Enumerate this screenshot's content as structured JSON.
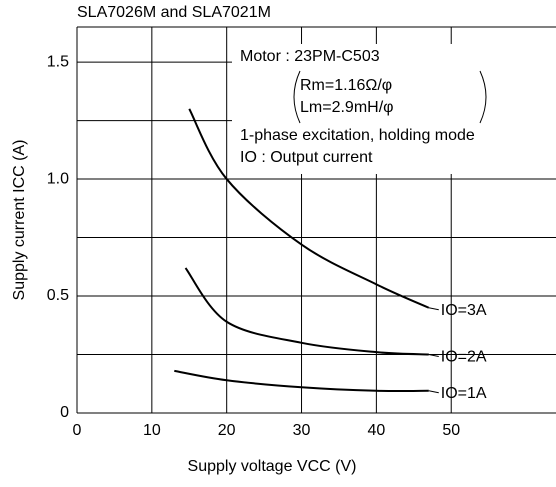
{
  "chart_data": {
    "type": "line",
    "title": "SLA7026M and SLA7021M",
    "x_label": "Supply voltage VCC (V)",
    "y_label": "Supply current ICC (A)",
    "annotations": [
      "Motor : 23PM-C503",
      "Rm=1.16Ω/φ",
      "Lm=2.9mH/φ",
      "1-phase excitation, holding mode",
      "IO : Output current"
    ],
    "xlim": [
      0,
      64
    ],
    "xticks": [
      0,
      10,
      20,
      30,
      40,
      50
    ],
    "ylim": [
      0,
      1.65
    ],
    "yticks": [
      0,
      0.5,
      {
        "value": 1,
        "label": "1.0"
      },
      1.5
    ],
    "ygrid": [
      0.25,
      0.75,
      1.25
    ],
    "grid": true,
    "series": [
      {
        "name": "IO=3A",
        "color": "#000000",
        "x": [
          15,
          20,
          30,
          40,
          47
        ],
        "values": [
          1.3,
          1.0,
          0.72,
          0.55,
          0.45
        ]
      },
      {
        "name": "IO=2A",
        "color": "#000000",
        "x": [
          14.5,
          20,
          30,
          40,
          47
        ],
        "values": [
          0.62,
          0.39,
          0.3,
          0.26,
          0.25
        ]
      },
      {
        "name": "IO=1A",
        "color": "#000000",
        "x": [
          13,
          20,
          30,
          40,
          47
        ],
        "values": [
          0.18,
          0.14,
          0.11,
          0.095,
          0.095
        ]
      }
    ]
  }
}
